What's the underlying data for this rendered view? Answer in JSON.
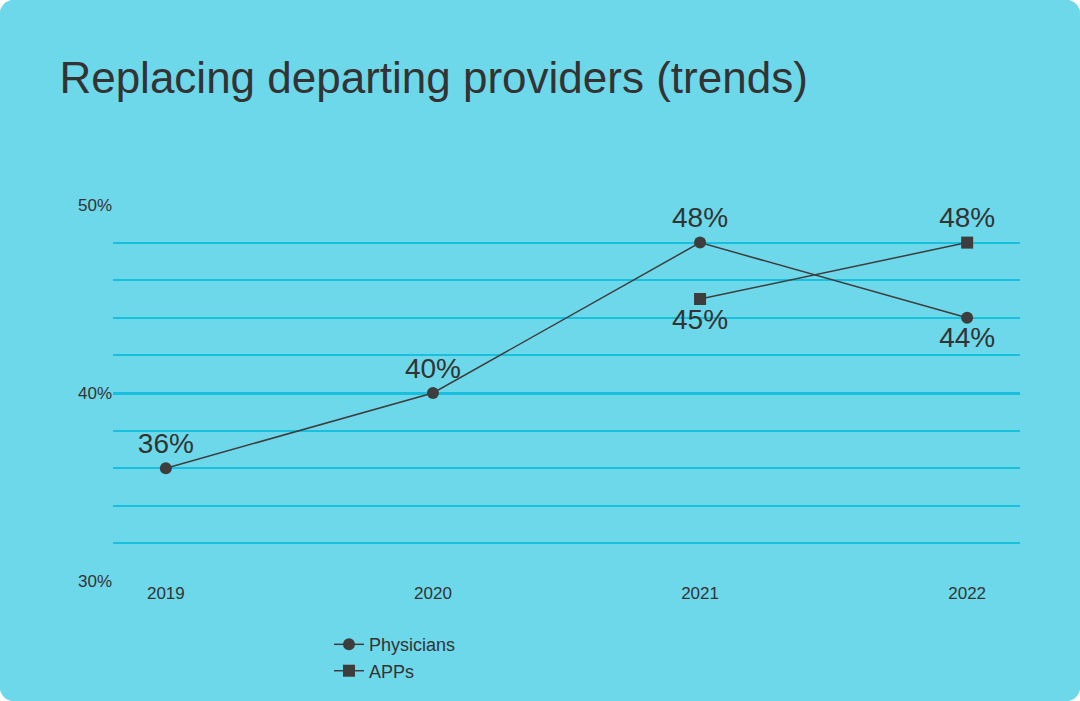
{
  "chart_data": {
    "type": "line",
    "title": "Replacing departing providers (trends)",
    "categories": [
      "2019",
      "2020",
      "2021",
      "2022"
    ],
    "series": [
      {
        "name": "Physicians",
        "color": "#3d3d3d",
        "marker": "circle",
        "values": [
          36,
          40,
          48,
          44
        ],
        "value_labels": [
          "36%",
          "40%",
          "48%",
          "44%"
        ]
      },
      {
        "name": "APPs",
        "color": "#3d3d3d",
        "marker": "square",
        "values": [
          null,
          null,
          45,
          48
        ],
        "value_labels": [
          null,
          null,
          "45%",
          "48%"
        ]
      }
    ],
    "ylim": [
      30,
      50
    ],
    "yticks": [
      {
        "value": 30,
        "label": "30%"
      },
      {
        "value": 40,
        "label": "40%"
      },
      {
        "value": 50,
        "label": "50%"
      }
    ],
    "grid": true,
    "legend": "bottom",
    "data_labels": true
  }
}
